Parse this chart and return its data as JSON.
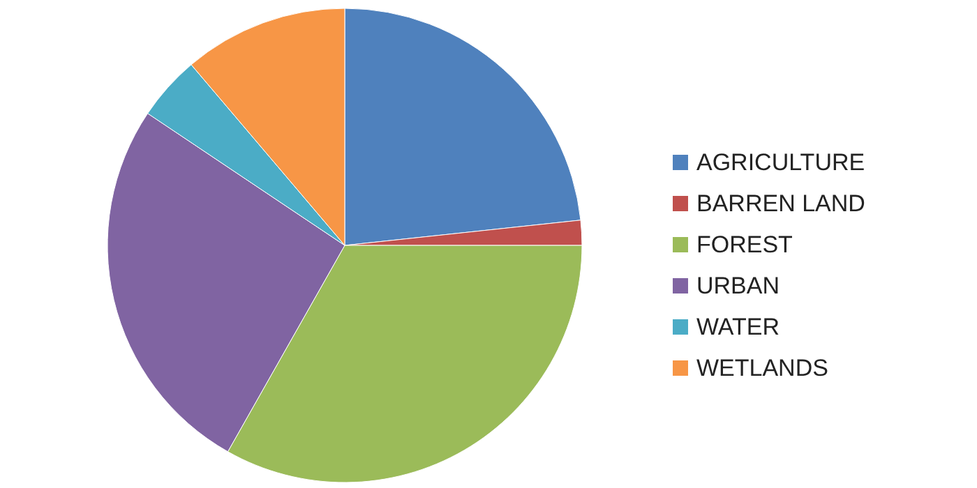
{
  "chart_data": {
    "type": "pie",
    "categories": [
      "AGRICULTURE",
      "BARREN LAND",
      "FOREST",
      "URBAN",
      "WATER",
      "WETLANDS"
    ],
    "values": [
      23.3,
      1.7,
      33.2,
      26.2,
      4.4,
      11.2
    ],
    "colors": [
      "#4f81bd",
      "#c0504d",
      "#9bbb59",
      "#8064a2",
      "#4bacc6",
      "#f79646"
    ],
    "legend": "right"
  }
}
